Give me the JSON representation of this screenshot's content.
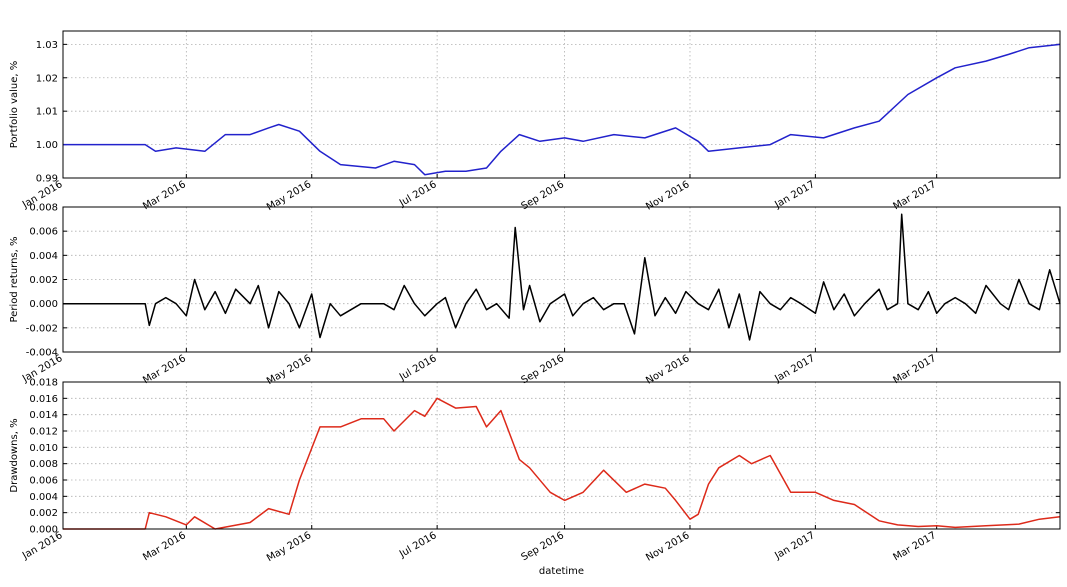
{
  "chart_data": [
    {
      "type": "line",
      "ylabel": "Portfolio value, %",
      "ylim": [
        0.99,
        1.034
      ],
      "yticks": [
        "0.99",
        "1.00",
        "1.01",
        "1.02",
        "1.03"
      ],
      "xticks": [
        "Jan 2016",
        "Mar 2016",
        "May 2016",
        "Jul 2016",
        "Sep 2016",
        "Nov 2016",
        "Jan 2017",
        "Mar 2017"
      ],
      "grid": true,
      "color": "#2222cc",
      "series": [
        {
          "x": [
            "2016-01-01",
            "2016-02-10",
            "2016-02-15",
            "2016-02-25",
            "2016-03-10",
            "2016-03-20",
            "2016-04-01",
            "2016-04-10",
            "2016-04-15",
            "2016-04-25",
            "2016-05-05",
            "2016-05-15",
            "2016-06-01",
            "2016-06-10",
            "2016-06-20",
            "2016-06-25",
            "2016-07-05",
            "2016-07-15",
            "2016-07-25",
            "2016-08-01",
            "2016-08-10",
            "2016-08-20",
            "2016-09-01",
            "2016-09-10",
            "2016-09-25",
            "2016-10-10",
            "2016-10-25",
            "2016-11-05",
            "2016-11-10",
            "2016-11-25",
            "2016-12-10",
            "2016-12-20",
            "2017-01-05",
            "2017-01-20",
            "2017-02-01",
            "2017-02-15",
            "2017-03-01",
            "2017-03-10",
            "2017-03-25",
            "2017-04-05",
            "2017-04-15",
            "2017-04-30"
          ],
          "y": [
            1.0,
            1.0,
            0.998,
            0.999,
            0.998,
            1.003,
            1.003,
            1.005,
            1.006,
            1.004,
            0.998,
            0.994,
            0.993,
            0.995,
            0.994,
            0.991,
            0.992,
            0.992,
            0.993,
            0.998,
            1.003,
            1.001,
            1.002,
            1.001,
            1.003,
            1.002,
            1.005,
            1.001,
            0.998,
            0.999,
            1.0,
            1.003,
            1.002,
            1.005,
            1.007,
            1.015,
            1.02,
            1.023,
            1.025,
            1.027,
            1.029,
            1.03
          ]
        }
      ]
    },
    {
      "type": "line",
      "ylabel": "Period returns, %",
      "ylim": [
        -0.004,
        0.008
      ],
      "yticks": [
        "-0.004",
        "-0.002",
        "0.000",
        "0.002",
        "0.004",
        "0.006",
        "0.008"
      ],
      "xticks": [
        "Jan 2016",
        "Mar 2016",
        "May 2016",
        "Jul 2016",
        "Sep 2016",
        "Nov 2016",
        "Jan 2017",
        "Mar 2017"
      ],
      "grid": true,
      "color": "#000000",
      "series": [
        {
          "x": [
            "2016-01-01",
            "2016-02-10",
            "2016-02-12",
            "2016-02-15",
            "2016-02-20",
            "2016-02-25",
            "2016-03-01",
            "2016-03-05",
            "2016-03-10",
            "2016-03-15",
            "2016-03-20",
            "2016-03-25",
            "2016-04-01",
            "2016-04-05",
            "2016-04-10",
            "2016-04-15",
            "2016-04-20",
            "2016-04-25",
            "2016-05-01",
            "2016-05-05",
            "2016-05-10",
            "2016-05-15",
            "2016-05-25",
            "2016-06-05",
            "2016-06-10",
            "2016-06-15",
            "2016-06-20",
            "2016-06-25",
            "2016-07-01",
            "2016-07-05",
            "2016-07-10",
            "2016-07-15",
            "2016-07-20",
            "2016-07-25",
            "2016-07-30",
            "2016-08-05",
            "2016-08-08",
            "2016-08-12",
            "2016-08-15",
            "2016-08-20",
            "2016-08-25",
            "2016-09-01",
            "2016-09-05",
            "2016-09-10",
            "2016-09-15",
            "2016-09-20",
            "2016-09-25",
            "2016-09-30",
            "2016-10-05",
            "2016-10-10",
            "2016-10-15",
            "2016-10-20",
            "2016-10-25",
            "2016-10-30",
            "2016-11-05",
            "2016-11-10",
            "2016-11-15",
            "2016-11-20",
            "2016-11-25",
            "2016-11-30",
            "2016-12-05",
            "2016-12-10",
            "2016-12-15",
            "2016-12-20",
            "2016-12-25",
            "2017-01-01",
            "2017-01-05",
            "2017-01-10",
            "2017-01-15",
            "2017-01-20",
            "2017-01-25",
            "2017-02-01",
            "2017-02-05",
            "2017-02-10",
            "2017-02-12",
            "2017-02-15",
            "2017-02-20",
            "2017-02-25",
            "2017-03-01",
            "2017-03-05",
            "2017-03-10",
            "2017-03-15",
            "2017-03-20",
            "2017-03-25",
            "2017-04-01",
            "2017-04-05",
            "2017-04-10",
            "2017-04-15",
            "2017-04-20",
            "2017-04-25",
            "2017-04-30"
          ],
          "y": [
            0.0,
            0.0,
            -0.0018,
            0.0,
            0.0005,
            0.0,
            -0.001,
            0.002,
            -0.0005,
            0.001,
            -0.0008,
            0.0012,
            0.0,
            0.0015,
            -0.002,
            0.001,
            0.0,
            -0.002,
            0.0008,
            -0.0028,
            0.0,
            -0.001,
            0.0,
            0.0,
            -0.0005,
            0.0015,
            0.0,
            -0.001,
            0.0,
            0.0005,
            -0.002,
            0.0,
            0.0012,
            -0.0005,
            0.0,
            -0.0012,
            0.0063,
            -0.0005,
            0.0015,
            -0.0015,
            0.0,
            0.0008,
            -0.001,
            0.0,
            0.0005,
            -0.0005,
            0.0,
            0.0,
            -0.0025,
            0.0038,
            -0.001,
            0.0005,
            -0.0008,
            0.001,
            0.0,
            -0.0005,
            0.0012,
            -0.002,
            0.0008,
            -0.003,
            0.001,
            0.0,
            -0.0005,
            0.0005,
            0.0,
            -0.0008,
            0.0018,
            -0.0005,
            0.0008,
            -0.001,
            0.0,
            0.0012,
            -0.0005,
            0.0,
            0.0074,
            0.0,
            -0.0005,
            0.001,
            -0.0008,
            0.0,
            0.0005,
            0.0,
            -0.0008,
            0.0015,
            0.0,
            -0.0005,
            0.002,
            0.0,
            -0.0005,
            0.0028,
            0.0
          ]
        }
      ]
    },
    {
      "type": "line",
      "ylabel": "Drawdowns, %",
      "xlabel": "datetime",
      "ylim": [
        0.0,
        0.018
      ],
      "yticks": [
        "0.000",
        "0.002",
        "0.004",
        "0.006",
        "0.008",
        "0.010",
        "0.012",
        "0.014",
        "0.016",
        "0.018"
      ],
      "xticks": [
        "Jan 2016",
        "Mar 2016",
        "May 2016",
        "Jul 2016",
        "Sep 2016",
        "Nov 2016",
        "Jan 2017",
        "Mar 2017"
      ],
      "grid": true,
      "color": "#dd2a1a",
      "series": [
        {
          "x": [
            "2016-01-01",
            "2016-02-10",
            "2016-02-12",
            "2016-02-20",
            "2016-03-01",
            "2016-03-05",
            "2016-03-15",
            "2016-04-01",
            "2016-04-10",
            "2016-04-20",
            "2016-04-25",
            "2016-05-05",
            "2016-05-15",
            "2016-05-25",
            "2016-06-05",
            "2016-06-10",
            "2016-06-20",
            "2016-06-25",
            "2016-07-01",
            "2016-07-10",
            "2016-07-20",
            "2016-07-25",
            "2016-08-01",
            "2016-08-10",
            "2016-08-15",
            "2016-08-25",
            "2016-09-01",
            "2016-09-10",
            "2016-09-20",
            "2016-10-01",
            "2016-10-10",
            "2016-10-20",
            "2016-10-25",
            "2016-11-01",
            "2016-11-05",
            "2016-11-10",
            "2016-11-15",
            "2016-11-25",
            "2016-12-01",
            "2016-12-10",
            "2016-12-20",
            "2017-01-01",
            "2017-01-10",
            "2017-01-20",
            "2017-02-01",
            "2017-02-10",
            "2017-02-20",
            "2017-03-01",
            "2017-03-10",
            "2017-03-25",
            "2017-04-10",
            "2017-04-20",
            "2017-04-30"
          ],
          "y": [
            0.0,
            0.0,
            0.002,
            0.0015,
            0.0005,
            0.0015,
            0.0,
            0.0008,
            0.0025,
            0.0018,
            0.006,
            0.0125,
            0.0125,
            0.0135,
            0.0135,
            0.012,
            0.0145,
            0.0138,
            0.016,
            0.0148,
            0.015,
            0.0125,
            0.0145,
            0.0085,
            0.0075,
            0.0045,
            0.0035,
            0.0045,
            0.0072,
            0.0045,
            0.0055,
            0.005,
            0.0035,
            0.0012,
            0.0018,
            0.0055,
            0.0075,
            0.009,
            0.008,
            0.009,
            0.0045,
            0.0045,
            0.0035,
            0.003,
            0.001,
            0.0005,
            0.0003,
            0.0004,
            0.0002,
            0.0004,
            0.0006,
            0.0012,
            0.0015
          ]
        }
      ]
    }
  ]
}
